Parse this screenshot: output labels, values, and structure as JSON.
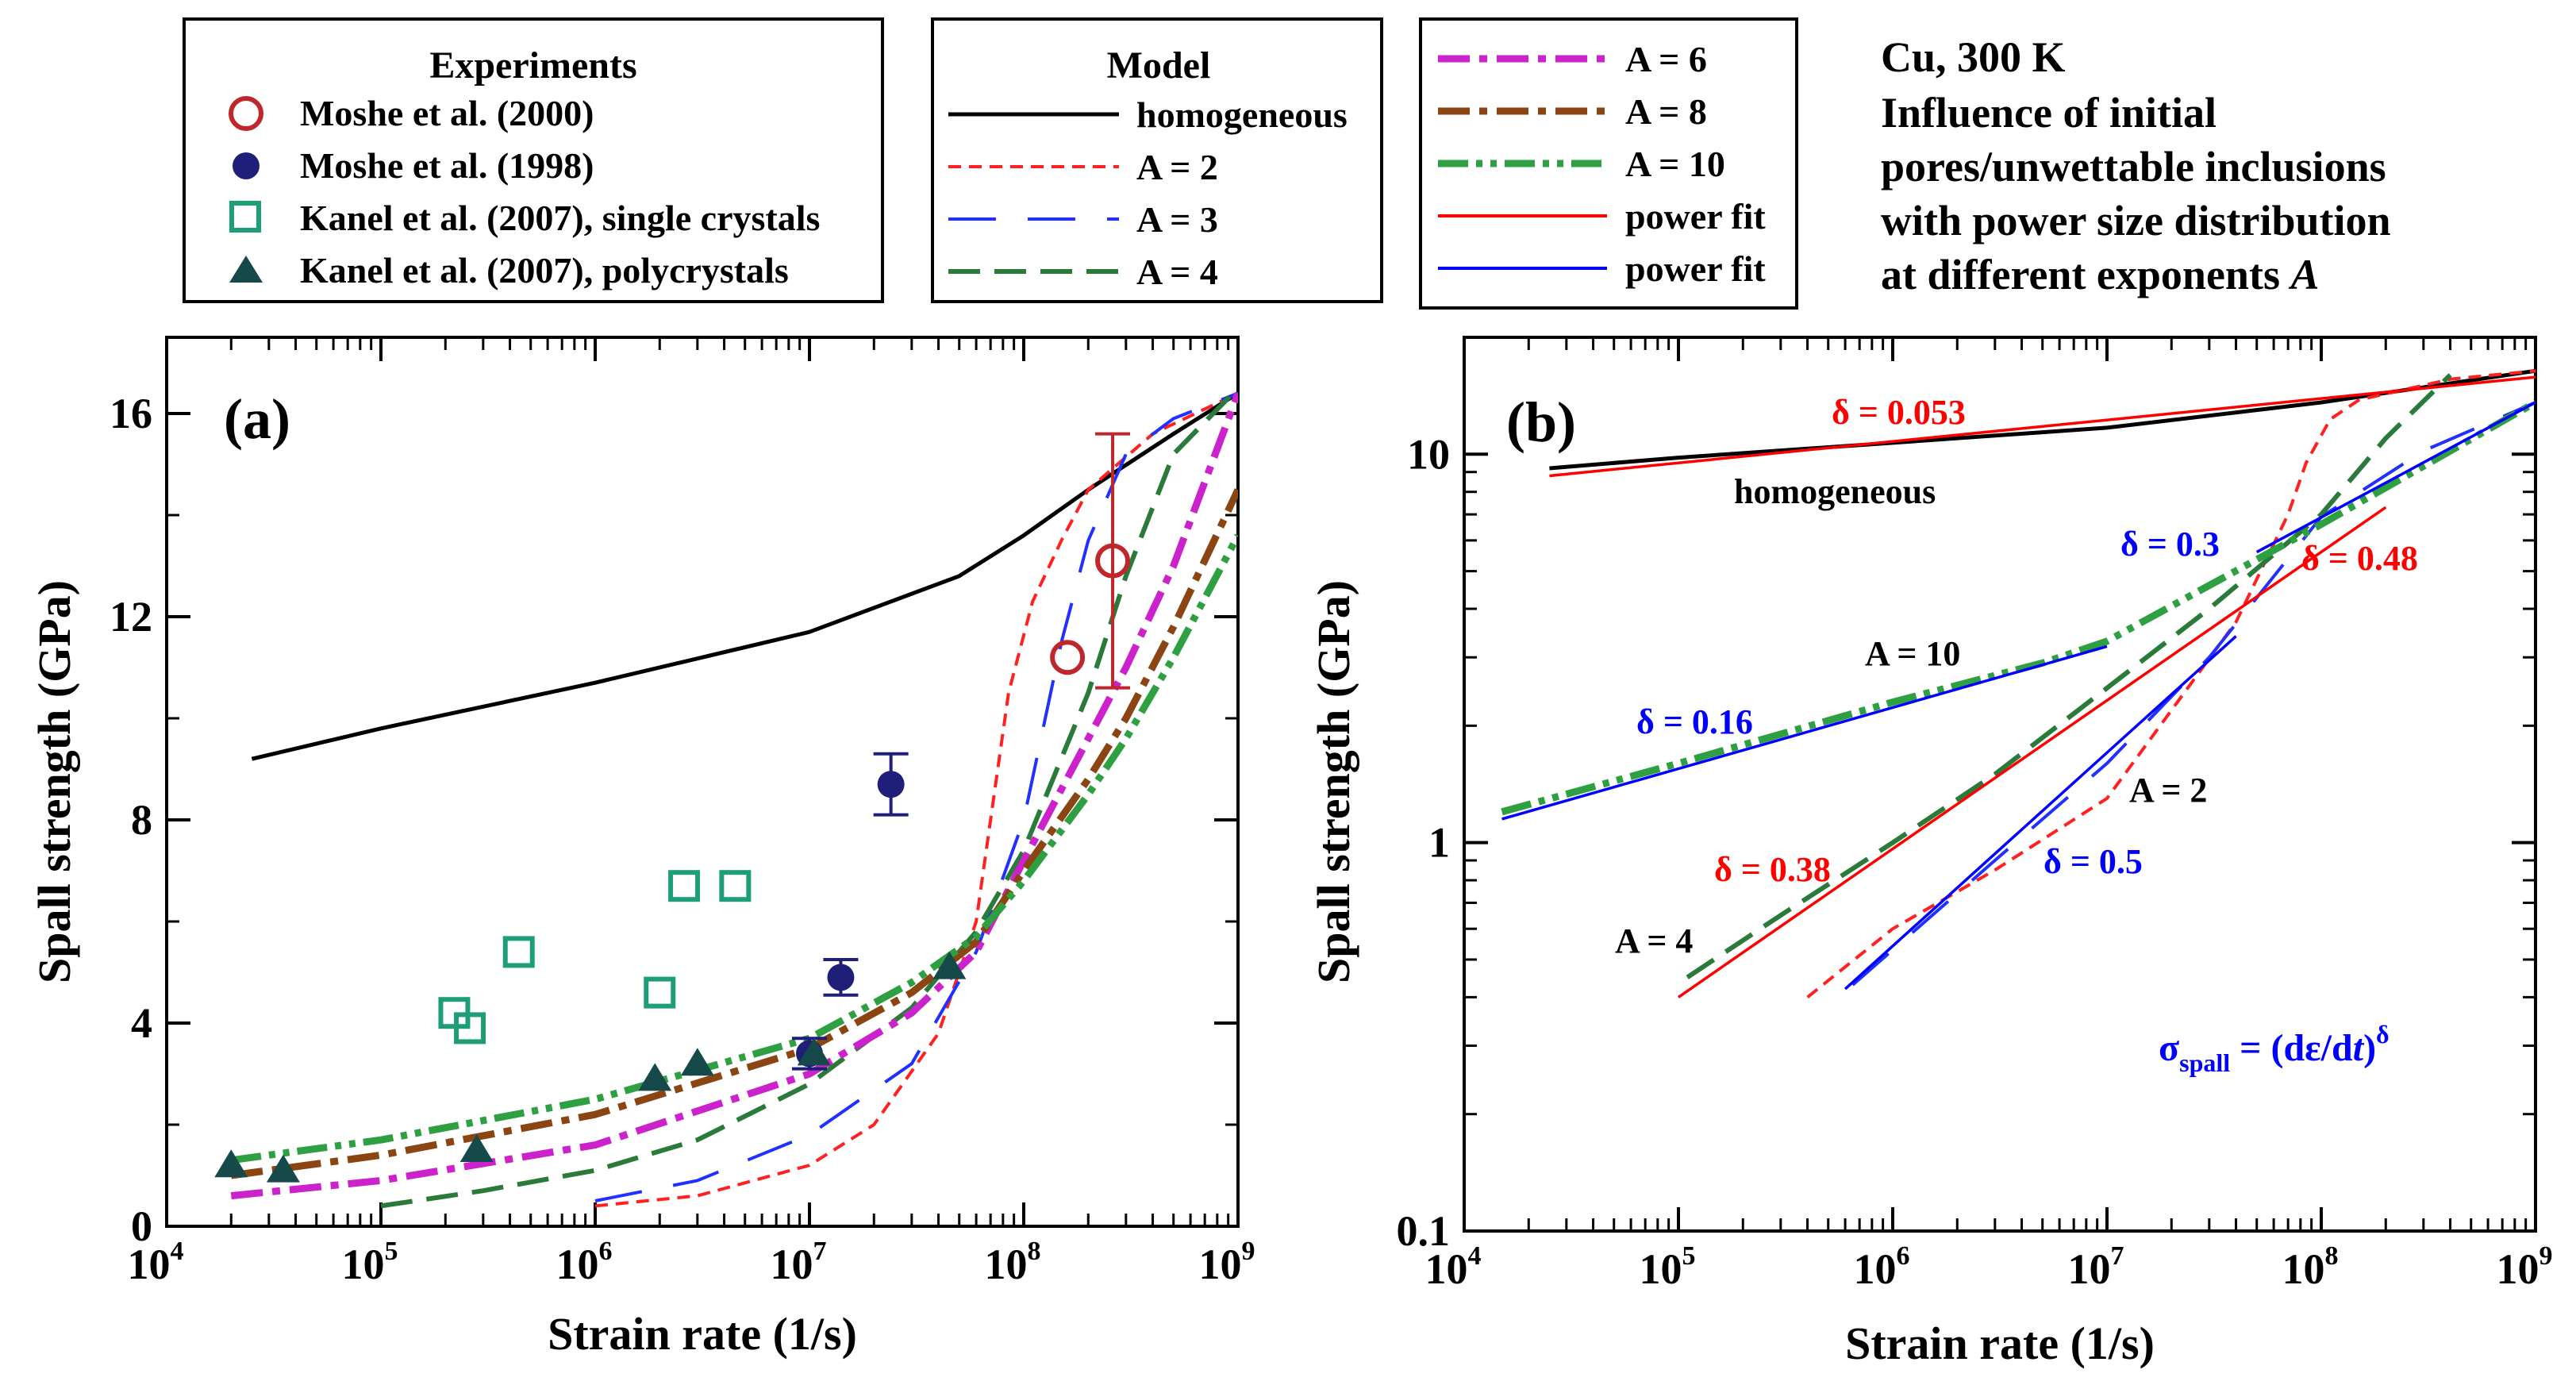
{
  "legend_experiments": {
    "title": "Experiments",
    "entries": [
      {
        "label": "Moshe et al. (2000)",
        "marker": "open-circle",
        "color": "#c0272d"
      },
      {
        "label": "Moshe et al. (1998)",
        "marker": "filled-circle",
        "color": "#1f1f7a"
      },
      {
        "label": "Kanel et al. (2007), single crystals",
        "marker": "open-square",
        "color": "#1d9e78"
      },
      {
        "label": "Kanel et al. (2007), polycrystals",
        "marker": "filled-triangle",
        "color": "#164a4a"
      }
    ]
  },
  "legend_model": {
    "title": "Model",
    "entries": [
      {
        "label": "homogeneous",
        "color": "#000000",
        "dash": "solid"
      },
      {
        "label": "A = 2",
        "color": "#ff2020",
        "dash": "short-dash"
      },
      {
        "label": "A = 3",
        "color": "#2030ff",
        "dash": "long-dash"
      },
      {
        "label": "A = 4",
        "color": "#2a7a3a",
        "dash": "dash"
      }
    ]
  },
  "legend_model2": {
    "entries": [
      {
        "label": "A = 6",
        "color": "#cc22cc",
        "dash": "dash-dot"
      },
      {
        "label": "A = 8",
        "color": "#8b4513",
        "dash": "dash-dot"
      },
      {
        "label": "A = 10",
        "color": "#2ea042",
        "dash": "dash-dot-dot"
      },
      {
        "label": "power fit",
        "color": "#ff0000",
        "dash": "solid"
      },
      {
        "label": "power fit",
        "color": "#0000ff",
        "dash": "solid"
      }
    ]
  },
  "annotation_block": {
    "lines": [
      "Cu, 300 K",
      "Influence of initial",
      "pores/unwettable inclusions",
      "with power size distribution",
      "at different exponents "
    ],
    "exponent_symbol": "A"
  },
  "chart_data": [
    {
      "type": "line",
      "panel_label": "(a)",
      "xlabel": "Strain rate (1/s)",
      "ylabel": "Spall strength (GPa)",
      "x_scale": "log",
      "xlim": [
        10000,
        1000000000
      ],
      "ylim": [
        0,
        17.5
      ],
      "x_ticks": [
        {
          "value": 10000,
          "base": "10",
          "exp": "4"
        },
        {
          "value": 100000,
          "base": "10",
          "exp": "5"
        },
        {
          "value": 1000000,
          "base": "10",
          "exp": "6"
        },
        {
          "value": 10000000,
          "base": "10",
          "exp": "7"
        },
        {
          "value": 100000000,
          "base": "10",
          "exp": "8"
        },
        {
          "value": 1000000000,
          "base": "10",
          "exp": "9"
        }
      ],
      "y_ticks": [
        {
          "value": 0,
          "label": "0"
        },
        {
          "value": 4,
          "label": "4"
        },
        {
          "value": 8,
          "label": "8"
        },
        {
          "value": 12,
          "label": "12"
        },
        {
          "value": 16,
          "label": "16"
        }
      ],
      "series": [
        {
          "name": "homogeneous",
          "color": "#000000",
          "dash": "solid",
          "x": [
            25000,
            100000,
            1000000,
            10000000,
            50000000,
            100000000,
            200000000,
            500000000,
            1000000000
          ],
          "y": [
            9.2,
            9.8,
            10.7,
            11.7,
            12.8,
            13.6,
            14.5,
            15.6,
            16.4
          ]
        },
        {
          "name": "A = 2",
          "color": "#ff2020",
          "dash": "short-dash",
          "x": [
            1000000,
            3000000,
            10000000,
            20000000,
            40000000,
            60000000,
            70000000,
            85000000,
            110000000,
            150000000,
            200000000,
            400000000,
            1000000000
          ],
          "y": [
            0.4,
            0.6,
            1.2,
            2.0,
            3.8,
            6.0,
            8.0,
            10.5,
            12.3,
            13.5,
            14.5,
            15.6,
            16.4
          ]
        },
        {
          "name": "A = 3",
          "color": "#2030ff",
          "dash": "long-dash",
          "x": [
            1000000,
            3000000,
            10000000,
            30000000,
            60000000,
            100000000,
            150000000,
            200000000,
            300000000,
            500000000,
            1000000000
          ],
          "y": [
            0.5,
            0.9,
            1.8,
            3.2,
            5.4,
            8.0,
            11.5,
            13.5,
            15.2,
            15.9,
            16.4
          ]
        },
        {
          "name": "A = 4",
          "color": "#2a7a3a",
          "dash": "dash",
          "x": [
            100000,
            300000,
            1000000,
            3000000,
            10000000,
            30000000,
            60000000,
            100000000,
            200000000,
            300000000,
            500000000,
            1000000000
          ],
          "y": [
            0.4,
            0.7,
            1.1,
            1.7,
            2.8,
            4.3,
            5.8,
            7.4,
            10.5,
            12.8,
            15.2,
            16.5
          ]
        },
        {
          "name": "A = 6",
          "color": "#cc22cc",
          "dash": "dash-dot",
          "x": [
            20000,
            100000,
            1000000,
            10000000,
            30000000,
            60000000,
            100000000,
            200000000,
            300000000,
            500000000,
            1000000000
          ],
          "y": [
            0.6,
            0.9,
            1.6,
            3.0,
            4.2,
            5.4,
            7.2,
            9.6,
            11.0,
            13.0,
            16.4
          ]
        },
        {
          "name": "A = 8",
          "color": "#8b4513",
          "dash": "dash-dot",
          "x": [
            20000,
            100000,
            1000000,
            10000000,
            30000000,
            60000000,
            100000000,
            200000000,
            300000000,
            500000000,
            1000000000
          ],
          "y": [
            1.0,
            1.4,
            2.2,
            3.5,
            4.6,
            5.6,
            7.0,
            8.8,
            10.0,
            11.8,
            14.5
          ]
        },
        {
          "name": "A = 10",
          "color": "#2ea042",
          "dash": "dash-dot-dot",
          "x": [
            20000,
            100000,
            1000000,
            10000000,
            30000000,
            60000000,
            100000000,
            200000000,
            300000000,
            500000000,
            1000000000
          ],
          "y": [
            1.3,
            1.7,
            2.5,
            3.7,
            4.8,
            5.7,
            6.8,
            8.5,
            9.6,
            11.2,
            13.6
          ]
        }
      ],
      "points": [
        {
          "name": "Moshe et al. (2000)",
          "marker": "open-circle",
          "color": "#c0272d",
          "x": [
            160000000,
            260000000
          ],
          "y": [
            11.2,
            13.1
          ],
          "err": [
            0,
            2.5
          ]
        },
        {
          "name": "Moshe et al. (1998)",
          "marker": "filled-circle",
          "color": "#1f1f7a",
          "x": [
            10000000,
            14000000,
            24000000
          ],
          "y": [
            3.4,
            4.9,
            8.7
          ],
          "err": [
            0.3,
            0.35,
            0.6
          ]
        },
        {
          "name": "Kanel et al. (2007), single crystals",
          "marker": "open-square",
          "color": "#1d9e78",
          "x": [
            220000,
            260000,
            440000,
            2000000,
            2600000,
            4500000
          ],
          "y": [
            4.2,
            3.9,
            5.4,
            4.6,
            6.7,
            6.7
          ]
        },
        {
          "name": "Kanel et al. (2007), polycrystals",
          "marker": "filled-triangle",
          "color": "#164a4a",
          "x": [
            20000,
            35000,
            280000,
            1900000,
            3000000,
            10500000,
            45000000
          ],
          "y": [
            1.2,
            1.1,
            1.5,
            2.9,
            3.2,
            3.4,
            5.1
          ]
        }
      ]
    },
    {
      "type": "line",
      "panel_label": "(b)",
      "xlabel": "Strain rate (1/s)",
      "ylabel": "Spall strength (GPa)",
      "x_scale": "log",
      "y_scale": "log",
      "xlim": [
        10000,
        1000000000
      ],
      "ylim": [
        0.1,
        20
      ],
      "x_ticks": [
        {
          "value": 10000,
          "base": "10",
          "exp": "4"
        },
        {
          "value": 100000,
          "base": "10",
          "exp": "5"
        },
        {
          "value": 1000000,
          "base": "10",
          "exp": "6"
        },
        {
          "value": 10000000,
          "base": "10",
          "exp": "7"
        },
        {
          "value": 100000000,
          "base": "10",
          "exp": "8"
        },
        {
          "value": 1000000000,
          "base": "10",
          "exp": "9"
        }
      ],
      "y_ticks": [
        {
          "value": 0.1,
          "label": "0.1"
        },
        {
          "value": 1,
          "label": "1"
        },
        {
          "value": 10,
          "label": "10"
        }
      ],
      "series": [
        {
          "name": "homogeneous",
          "color": "#000000",
          "dash": "solid",
          "x": [
            25000,
            100000,
            1000000,
            10000000,
            100000000,
            1000000000
          ],
          "y": [
            9.2,
            9.8,
            10.7,
            11.7,
            13.6,
            16.4
          ]
        },
        {
          "name": "A = 2",
          "color": "#ff2020",
          "dash": "short-dash",
          "x": [
            400000,
            1000000,
            3000000,
            10000000,
            40000000,
            70000000,
            85000000,
            110000000,
            150000000,
            400000000,
            1000000000
          ],
          "y": [
            0.4,
            0.6,
            0.85,
            1.3,
            3.7,
            7.0,
            9.5,
            12.3,
            13.8,
            15.6,
            16.4
          ]
        },
        {
          "name": "A = 3",
          "color": "#2030ff",
          "dash": "long-dash",
          "x": [
            650000,
            3000000,
            10000000,
            30000000,
            100000000,
            300000000,
            1000000000
          ],
          "y": [
            0.43,
            0.9,
            1.6,
            3.0,
            6.9,
            10.2,
            13.6
          ]
        },
        {
          "name": "A = 4",
          "color": "#2a7a3a",
          "dash": "dash",
          "x": [
            110000,
            300000,
            1000000,
            3000000,
            10000000,
            30000000,
            100000000,
            200000000,
            400000000
          ],
          "y": [
            0.45,
            0.65,
            1.0,
            1.5,
            2.5,
            4.0,
            7.0,
            11.0,
            16.0
          ]
        },
        {
          "name": "A = 10",
          "color": "#2ea042",
          "dash": "dash-dot-dot",
          "x": [
            15000,
            100000,
            1000000,
            5000000,
            10000000,
            100000000,
            1000000000
          ],
          "y": [
            1.2,
            1.6,
            2.3,
            2.9,
            3.3,
            6.6,
            13.6
          ]
        }
      ],
      "power_fits": [
        {
          "color": "#ff0000",
          "x": [
            25000,
            1000000000
          ],
          "y": [
            8.8,
            15.8
          ]
        },
        {
          "color": "#0000ff",
          "x": [
            15000,
            10000000
          ],
          "y": [
            1.15,
            3.2
          ]
        },
        {
          "color": "#ff0000",
          "x": [
            100000,
            200000000
          ],
          "y": [
            0.4,
            7.3
          ]
        },
        {
          "color": "#0000ff",
          "x": [
            600000,
            40000000
          ],
          "y": [
            0.42,
            3.4
          ]
        },
        {
          "color": "#0000ff",
          "x": [
            50000000,
            1000000000
          ],
          "y": [
            5.6,
            13.6
          ]
        }
      ],
      "annotations": [
        {
          "text": "δ = 0.053",
          "color": "#ff0000"
        },
        {
          "text": "homogeneous",
          "color": "#000000"
        },
        {
          "text": "δ = 0.3",
          "color": "#0000ff"
        },
        {
          "text": "δ = 0.48",
          "color": "#ff0000"
        },
        {
          "text": "A = 10",
          "color": "#000000"
        },
        {
          "text": "δ = 0.16",
          "color": "#0000ff"
        },
        {
          "text": "A = 2",
          "color": "#000000"
        },
        {
          "text": "δ = 0.38",
          "color": "#ff0000"
        },
        {
          "text": "δ = 0.5",
          "color": "#0000ff"
        },
        {
          "text": "A = 4",
          "color": "#000000"
        }
      ],
      "formula": {
        "sigma": "σ",
        "sigma_sub": "spall",
        "body_1": " = (dε/d",
        "t": "t",
        "body_2": ")",
        "delta_sup": "δ",
        "color": "#0000ff"
      }
    }
  ]
}
